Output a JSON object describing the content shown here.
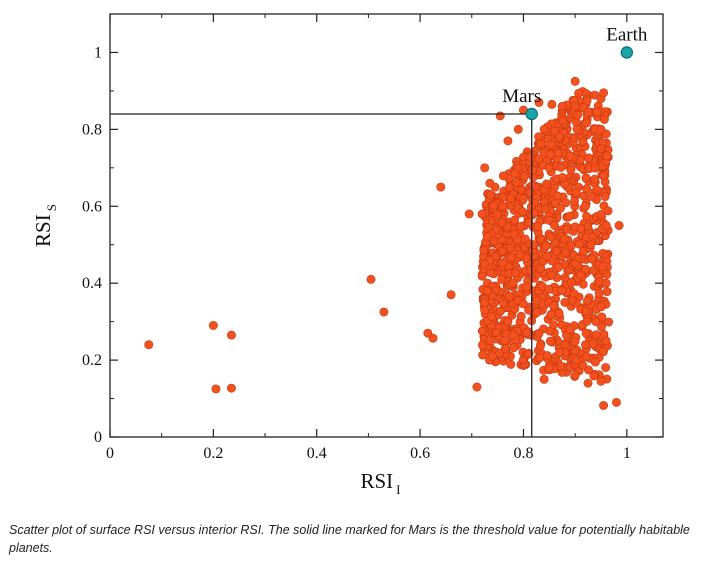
{
  "caption": "Scatter plot of surface RSI versus interior RSI. The solid line marked for Mars is the threshold value for potentially habitable planets.",
  "colors": {
    "points": "#f4511e",
    "points_edge": "#c83a12",
    "highlight": "#1aa3a8",
    "highlight_edge": "#0e6f73",
    "axis": "#222222"
  },
  "chart_data": {
    "type": "scatter",
    "title": "",
    "xlabel": "RSI",
    "xlabel_sub": "I",
    "ylabel": "RSI",
    "ylabel_sub": "S",
    "xlim": [
      0,
      1.07
    ],
    "ylim": [
      0,
      1.1
    ],
    "xticks": [
      0,
      0.2,
      0.4,
      0.6,
      0.8,
      1
    ],
    "xtick_labels": [
      "0",
      "0.2",
      "0.4",
      "0.6",
      "0.8",
      "1"
    ],
    "yticks": [
      0,
      0.2,
      0.4,
      0.6,
      0.8,
      1
    ],
    "ytick_labels": [
      "0",
      "0.2",
      "0.4",
      "0.6",
      "0.8",
      "1"
    ],
    "grid": false,
    "highlighted": [
      {
        "name": "Mars",
        "x": 0.816,
        "y": 0.84
      },
      {
        "name": "Earth",
        "x": 1.0,
        "y": 1.0
      }
    ],
    "threshold_lines": {
      "x": 0.816,
      "y": 0.84
    },
    "cluster": {
      "x_min": 0.72,
      "x_max": 0.965,
      "y_min": 0.13,
      "y_max": 0.92,
      "approx_count": 1100
    },
    "points": [
      [
        0.075,
        0.24
      ],
      [
        0.2,
        0.29
      ],
      [
        0.205,
        0.125
      ],
      [
        0.235,
        0.127
      ],
      [
        0.235,
        0.265
      ],
      [
        0.505,
        0.41
      ],
      [
        0.53,
        0.325
      ],
      [
        0.615,
        0.27
      ],
      [
        0.625,
        0.257
      ],
      [
        0.66,
        0.37
      ],
      [
        0.64,
        0.65
      ],
      [
        0.695,
        0.58
      ],
      [
        0.71,
        0.13
      ],
      [
        0.955,
        0.082
      ],
      [
        0.98,
        0.09
      ],
      [
        0.985,
        0.55
      ],
      [
        0.9,
        0.925
      ],
      [
        0.95,
        0.88
      ],
      [
        0.955,
        0.895
      ],
      [
        0.755,
        0.835
      ],
      [
        0.8,
        0.85
      ],
      [
        0.83,
        0.87
      ],
      [
        0.855,
        0.865
      ],
      [
        0.875,
        0.86
      ],
      [
        0.9,
        0.86
      ],
      [
        0.925,
        0.845
      ],
      [
        0.95,
        0.8
      ],
      [
        0.79,
        0.8
      ],
      [
        0.77,
        0.77
      ],
      [
        0.84,
        0.8
      ],
      [
        0.725,
        0.7
      ],
      [
        0.735,
        0.66
      ],
      [
        0.72,
        0.58
      ],
      [
        0.73,
        0.52
      ],
      [
        0.725,
        0.45
      ],
      [
        0.73,
        0.38
      ],
      [
        0.725,
        0.33
      ],
      [
        0.735,
        0.25
      ],
      [
        0.74,
        0.21
      ],
      [
        0.765,
        0.23
      ],
      [
        0.8,
        0.2
      ],
      [
        0.84,
        0.15
      ],
      [
        0.85,
        0.18
      ],
      [
        0.9,
        0.16
      ],
      [
        0.925,
        0.14
      ],
      [
        0.95,
        0.145
      ],
      [
        0.96,
        0.25
      ],
      [
        0.96,
        0.4
      ],
      [
        0.96,
        0.55
      ],
      [
        0.955,
        0.68
      ],
      [
        0.95,
        0.75
      ],
      [
        0.78,
        0.4
      ],
      [
        0.82,
        0.5
      ],
      [
        0.86,
        0.55
      ],
      [
        0.88,
        0.35
      ],
      [
        0.9,
        0.45
      ],
      [
        0.92,
        0.6
      ],
      [
        0.94,
        0.3
      ],
      [
        0.76,
        0.6
      ],
      [
        0.8,
        0.62
      ],
      [
        0.85,
        0.7
      ],
      [
        0.87,
        0.78
      ],
      [
        0.91,
        0.72
      ],
      [
        0.93,
        0.5
      ],
      [
        0.77,
        0.3
      ],
      [
        0.81,
        0.33
      ],
      [
        0.83,
        0.27
      ],
      [
        0.87,
        0.22
      ],
      [
        0.89,
        0.28
      ],
      [
        0.92,
        0.24
      ]
    ]
  }
}
